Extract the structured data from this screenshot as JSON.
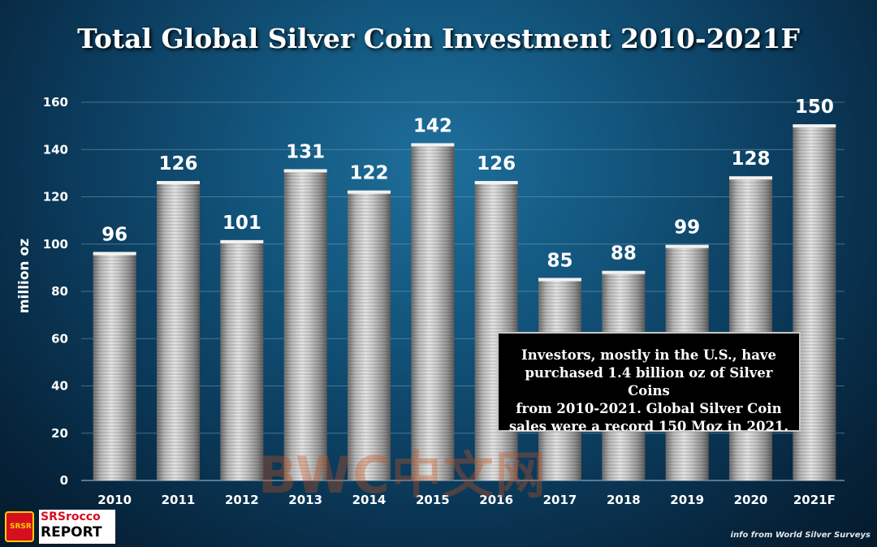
{
  "chart_data": {
    "type": "bar",
    "title": "Total Global Silver Coin Investment 2010-2021F",
    "ylabel": "million oz",
    "xlabel": "",
    "categories": [
      "2010",
      "2011",
      "2012",
      "2013",
      "2014",
      "2015",
      "2016",
      "2017",
      "2018",
      "2019",
      "2020",
      "2021F"
    ],
    "values": [
      96,
      126,
      101,
      131,
      122,
      142,
      126,
      85,
      88,
      99,
      128,
      150
    ],
    "ylim": [
      0,
      160
    ],
    "yticks": [
      0,
      20,
      40,
      60,
      80,
      100,
      120,
      140,
      160
    ],
    "grid": true,
    "legend": "none"
  },
  "annotation": {
    "lines": [
      "Investors, mostly in the U.S., have",
      "purchased 1.4 billion oz of Silver Coins",
      "from 2010-2021.  Global Silver Coin",
      "sales were a record 150 Moz in 2021."
    ]
  },
  "watermark": "BWC中文网",
  "logo": {
    "line1": "SRSrocco",
    "line2": "REPORT",
    "badge": "SRSR"
  },
  "source": "info from World Silver Surveys",
  "colors": {
    "background": "#0c3e60",
    "bar": "#bdbdbd",
    "gridline": "#7f9fb3",
    "text": "#ffffff"
  }
}
